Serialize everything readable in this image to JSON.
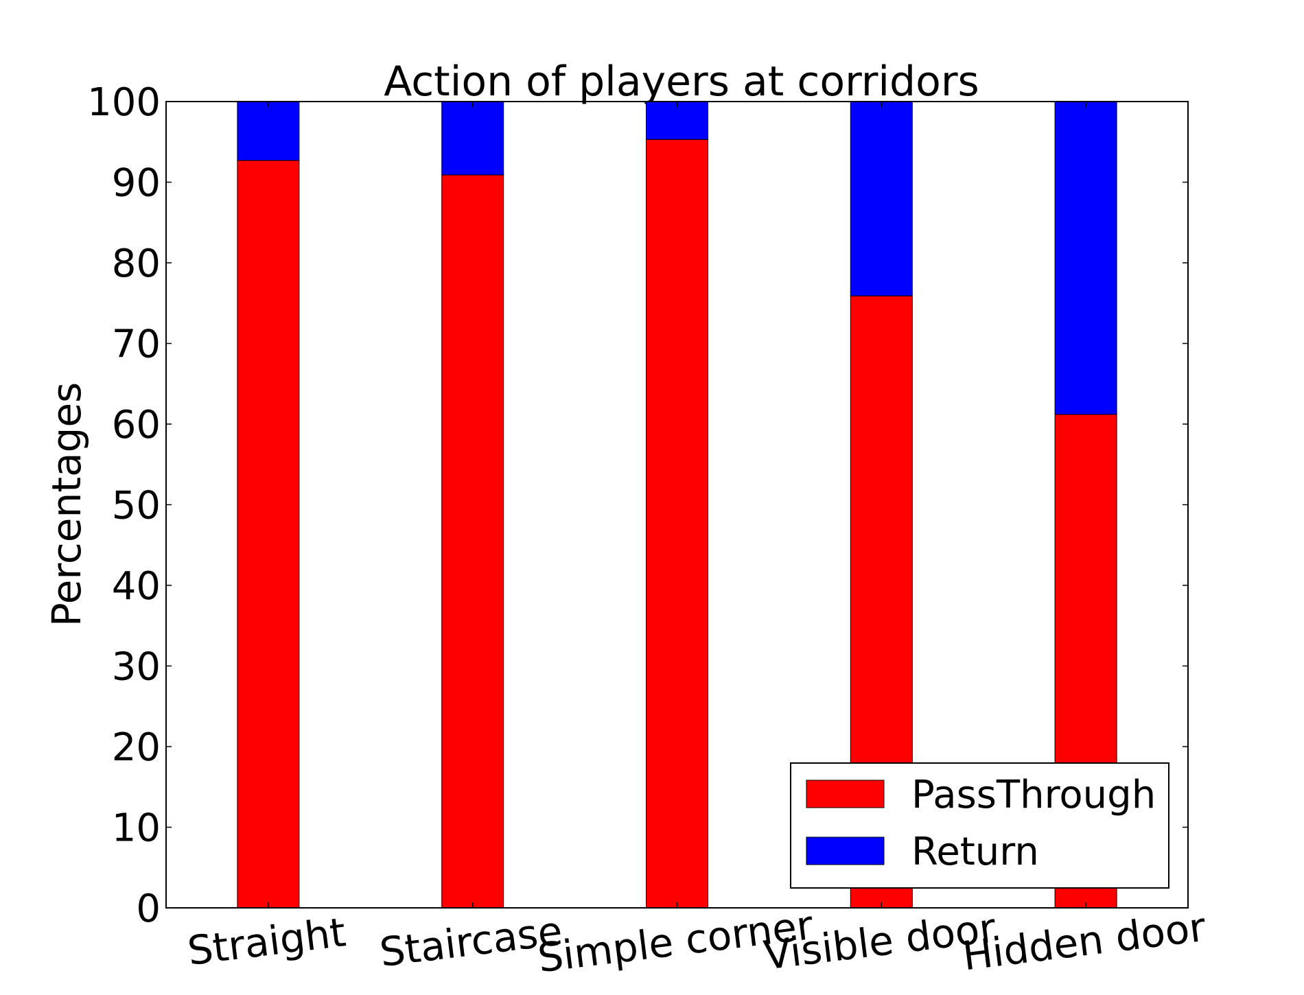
{
  "chart_data": {
    "type": "bar",
    "stacked": true,
    "title": "Action of players at corridors",
    "xlabel": "",
    "ylabel": "Percentages",
    "ylim": [
      0,
      100
    ],
    "yticks": [
      0,
      10,
      20,
      30,
      40,
      50,
      60,
      70,
      80,
      90,
      100
    ],
    "categories": [
      "Straight",
      "Staircase",
      "Simple corner",
      "Visible door",
      "Hidden door"
    ],
    "series": [
      {
        "name": "PassThrough",
        "color": "#ff0000",
        "values": [
          92.7,
          90.9,
          95.3,
          75.9,
          61.2
        ]
      },
      {
        "name": "Return",
        "color": "#0000ff",
        "values": [
          7.3,
          9.1,
          4.7,
          24.1,
          38.8
        ]
      }
    ],
    "legend": {
      "position": "lower-right"
    },
    "grid": false
  }
}
